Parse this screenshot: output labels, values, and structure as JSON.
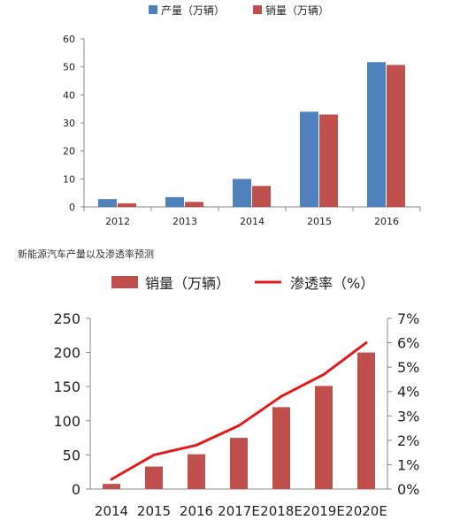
{
  "caption": "新能源汽车产量以及渗透率预测",
  "chart_data": [
    {
      "type": "bar",
      "title": "",
      "categories": [
        "2012",
        "2013",
        "2014",
        "2015",
        "2016"
      ],
      "series": [
        {
          "name": "产量（万辆）",
          "values": [
            2.8,
            3.5,
            10.0,
            34.0,
            51.7
          ],
          "color": "#4f81bd"
        },
        {
          "name": "销量（万辆）",
          "values": [
            1.3,
            1.8,
            7.5,
            33.0,
            50.7
          ],
          "color": "#c0504d"
        }
      ],
      "yticks": [
        "0",
        "10",
        "20",
        "30",
        "40",
        "50",
        "60"
      ],
      "ylim": [
        0,
        60
      ],
      "xlabel": "",
      "ylabel": "",
      "grid": false,
      "legend": "top"
    },
    {
      "type": "bar+line",
      "title": "",
      "categories": [
        "2014",
        "2015",
        "2016",
        "2017E",
        "2018E",
        "2019E",
        "2020E"
      ],
      "series": [
        {
          "name": "销量（万辆）",
          "type": "bar",
          "axis": "left",
          "values": [
            7.5,
            33,
            51,
            75,
            120,
            151,
            200
          ],
          "color": "#c0504d"
        },
        {
          "name": "渗透率（%）",
          "type": "line",
          "axis": "right",
          "values": [
            0.4,
            1.4,
            1.8,
            2.6,
            3.8,
            4.7,
            6.0
          ],
          "color": "#e31a1c"
        }
      ],
      "yticks_left": [
        "0",
        "50",
        "100",
        "150",
        "200",
        "250"
      ],
      "ylim_left": [
        0,
        250
      ],
      "yticks_right": [
        "0%",
        "1%",
        "2%",
        "3%",
        "4%",
        "5%",
        "6%",
        "7%"
      ],
      "ylim_right": [
        0,
        7
      ],
      "xlabel": "",
      "ylabel": "",
      "grid": false,
      "legend": "top"
    }
  ]
}
